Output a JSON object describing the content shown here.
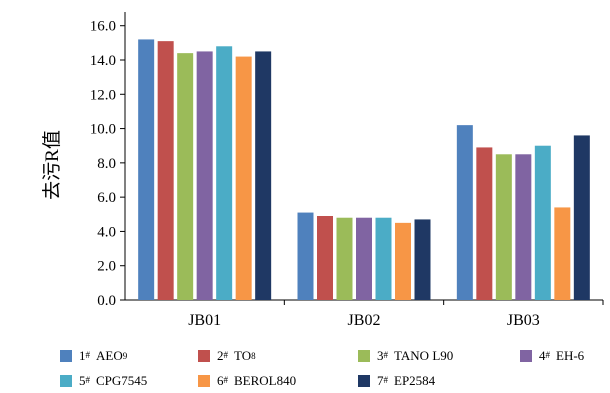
{
  "chart_data": {
    "type": "bar",
    "ylabel": "去污R值",
    "xlabel": "",
    "ylim": [
      0,
      16.8
    ],
    "yticks": [
      "0.0",
      "2.0",
      "4.0",
      "6.0",
      "8.0",
      "10.0",
      "12.0",
      "14.0",
      "16.0"
    ],
    "categories": [
      "JB01",
      "JB02",
      "JB03"
    ],
    "series": [
      {
        "name": "1# AEO9",
        "num": "1",
        "sup": "#",
        "base": "AEO",
        "sub": "9",
        "color": "#4f81bd",
        "values": [
          15.2,
          5.1,
          10.2
        ]
      },
      {
        "name": "2# TO8",
        "num": "2",
        "sup": "#",
        "base": "TO",
        "sub": "8",
        "color": "#c0504d",
        "values": [
          15.1,
          4.9,
          8.9
        ]
      },
      {
        "name": "3# TANO L90",
        "num": "3",
        "sup": "#",
        "base": "TANO L90",
        "sub": "",
        "color": "#9bbb59",
        "values": [
          14.4,
          4.8,
          8.5
        ]
      },
      {
        "name": "4# EH-6",
        "num": "4",
        "sup": "#",
        "base": "EH-6",
        "sub": "",
        "color": "#8064a2",
        "values": [
          14.5,
          4.8,
          8.5
        ]
      },
      {
        "name": "5# CPG7545",
        "num": "5",
        "sup": "#",
        "base": "CPG7545",
        "sub": "",
        "color": "#4bacc6",
        "values": [
          14.8,
          4.8,
          9.0
        ]
      },
      {
        "name": "6# BEROL840",
        "num": "6",
        "sup": "#",
        "base": "BEROL840",
        "sub": "",
        "color": "#f79646",
        "values": [
          14.2,
          4.5,
          5.4
        ]
      },
      {
        "name": "7# EP2584",
        "num": "7",
        "sup": "#",
        "base": "EP2584",
        "sub": "",
        "color": "#1f3864",
        "values": [
          14.5,
          4.7,
          9.6
        ]
      }
    ],
    "legend_position": "bottom",
    "grid": false
  }
}
